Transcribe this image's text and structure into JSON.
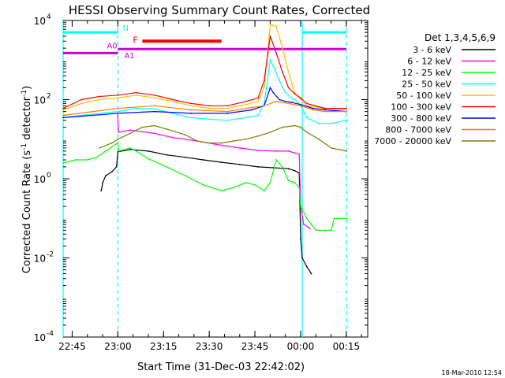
{
  "chart_data": {
    "type": "line",
    "title": "HESSI Observing Summary Count Rates, Corrected",
    "xlabel": "Start Time (31-Dec-03 22:42:02)",
    "ylabel_main": "Corrected Count Rate (s",
    "ylabel_sup1": "-1",
    "ylabel_mid": " detector",
    "ylabel_sup2": "-1",
    "ylabel_end": ")",
    "y_scale": "log",
    "ylim": [
      0.0001,
      10000
    ],
    "xlim_minutes": [
      0,
      100
    ],
    "x_ticks": [
      {
        "label": "22:45",
        "t": 2.97
      },
      {
        "label": "23:00",
        "t": 17.97
      },
      {
        "label": "23:15",
        "t": 32.97
      },
      {
        "label": "23:30",
        "t": 47.97
      },
      {
        "label": "23:45",
        "t": 62.97
      },
      {
        "label": "00:00",
        "t": 77.97
      },
      {
        "label": "00:15",
        "t": 92.97
      }
    ],
    "y_ticks": [
      {
        "base": "10",
        "exp": "-4",
        "value": 0.0001
      },
      {
        "base": "10",
        "exp": "-2",
        "value": 0.01
      },
      {
        "base": "10",
        "exp": "0",
        "value": 1
      },
      {
        "base": "10",
        "exp": "2",
        "value": 100
      },
      {
        "base": "10",
        "exp": "4",
        "value": 10000
      }
    ],
    "legend_title": "Det 1,3,4,5,6,9",
    "legend_placement": "right",
    "series": [
      {
        "name": "3 - 6 keV",
        "color": "#000000",
        "points": [
          [
            12.5,
            0.5
          ],
          [
            13,
            0.8
          ],
          [
            14,
            1.2
          ],
          [
            16,
            1.5
          ],
          [
            17.5,
            2
          ],
          [
            18,
            4.8
          ],
          [
            22,
            5.5
          ],
          [
            28,
            5.0
          ],
          [
            34,
            4.0
          ],
          [
            40,
            3.5
          ],
          [
            46,
            3.0
          ],
          [
            52,
            2.6
          ],
          [
            58,
            2.3
          ],
          [
            64,
            2.0
          ],
          [
            69,
            1.9
          ],
          [
            74,
            1.8
          ],
          [
            76,
            1.6
          ],
          [
            77.5,
            1.4
          ],
          [
            78,
            0.03
          ],
          [
            78.5,
            0.01
          ],
          [
            80,
            0.006
          ],
          [
            81.5,
            0.004
          ]
        ]
      },
      {
        "name": "6 - 12 keV",
        "color": "#ff00ff",
        "points": [
          [
            17.9,
            40
          ],
          [
            18.2,
            15
          ],
          [
            22,
            17
          ],
          [
            30,
            14
          ],
          [
            36,
            11
          ],
          [
            44,
            9
          ],
          [
            52,
            7
          ],
          [
            58,
            6
          ],
          [
            64,
            5.2
          ],
          [
            70,
            5
          ],
          [
            74,
            5
          ],
          [
            76,
            4.5
          ],
          [
            77.5,
            4.2
          ],
          [
            78,
            0.2
          ],
          [
            79,
            0.07
          ],
          [
            80.5,
            0.06
          ],
          [
            81,
            0.055
          ]
        ]
      },
      {
        "name": "12 - 25 keV",
        "color": "#00ff00",
        "points": [
          [
            0,
            2.5
          ],
          [
            4,
            3
          ],
          [
            8,
            3
          ],
          [
            11,
            3.5
          ],
          [
            14,
            5
          ],
          [
            17.9,
            8
          ],
          [
            18.3,
            5
          ],
          [
            22,
            6
          ],
          [
            24,
            5
          ],
          [
            28,
            3.2
          ],
          [
            34,
            2
          ],
          [
            40,
            1.2
          ],
          [
            46,
            0.7
          ],
          [
            52,
            0.5
          ],
          [
            56,
            0.6
          ],
          [
            60,
            0.8
          ],
          [
            63,
            0.7
          ],
          [
            66,
            0.5
          ],
          [
            68,
            0.8
          ],
          [
            70,
            3
          ],
          [
            72,
            2
          ],
          [
            74,
            0.9
          ],
          [
            76,
            0.8
          ],
          [
            77.5,
            0.6
          ],
          [
            78,
            0.2
          ],
          [
            80,
            0.1
          ],
          [
            81.5,
            0.07
          ],
          [
            83,
            0.05
          ],
          [
            88,
            0.05
          ],
          [
            89,
            0.1
          ],
          [
            93,
            0.1
          ]
        ]
      },
      {
        "name": "25 - 50 keV",
        "color": "#00ffff",
        "points": [
          [
            0,
            35
          ],
          [
            6,
            40
          ],
          [
            12,
            45
          ],
          [
            18,
            50
          ],
          [
            24,
            60
          ],
          [
            30,
            58
          ],
          [
            36,
            45
          ],
          [
            42,
            35
          ],
          [
            48,
            32
          ],
          [
            54,
            30
          ],
          [
            60,
            35
          ],
          [
            64,
            40
          ],
          [
            66,
            80
          ],
          [
            68,
            1000
          ],
          [
            69,
            700
          ],
          [
            71,
            300
          ],
          [
            73,
            150
          ],
          [
            75,
            110
          ],
          [
            77,
            90
          ],
          [
            78,
            70
          ],
          [
            80,
            35
          ],
          [
            84,
            25
          ],
          [
            88,
            25
          ],
          [
            93,
            30
          ]
        ]
      },
      {
        "name": "50 - 100 keV",
        "color": "#ffbf00",
        "points": [
          [
            0,
            55
          ],
          [
            6,
            80
          ],
          [
            12,
            100
          ],
          [
            18,
            110
          ],
          [
            24,
            130
          ],
          [
            30,
            110
          ],
          [
            36,
            90
          ],
          [
            42,
            70
          ],
          [
            48,
            60
          ],
          [
            54,
            60
          ],
          [
            60,
            75
          ],
          [
            64,
            90
          ],
          [
            66,
            200
          ],
          [
            68,
            8000
          ],
          [
            70,
            7000
          ],
          [
            72,
            2000
          ],
          [
            74,
            500
          ],
          [
            76,
            150
          ],
          [
            78,
            100
          ],
          [
            80,
            70
          ],
          [
            86,
            60
          ],
          [
            93,
            55
          ]
        ]
      },
      {
        "name": "100 - 300 keV",
        "color": "#ff0000",
        "points": [
          [
            0,
            60
          ],
          [
            6,
            100
          ],
          [
            12,
            120
          ],
          [
            18,
            130
          ],
          [
            24,
            150
          ],
          [
            30,
            130
          ],
          [
            36,
            100
          ],
          [
            42,
            80
          ],
          [
            48,
            70
          ],
          [
            54,
            70
          ],
          [
            60,
            90
          ],
          [
            64,
            110
          ],
          [
            66,
            300
          ],
          [
            68,
            4000
          ],
          [
            70,
            1500
          ],
          [
            72,
            500
          ],
          [
            74,
            200
          ],
          [
            76,
            140
          ],
          [
            78,
            110
          ],
          [
            80,
            80
          ],
          [
            86,
            60
          ],
          [
            93,
            60
          ]
        ]
      },
      {
        "name": "300 - 800 keV",
        "color": "#0000ff",
        "points": [
          [
            0,
            35
          ],
          [
            18,
            45
          ],
          [
            30,
            50
          ],
          [
            42,
            45
          ],
          [
            54,
            45
          ],
          [
            62,
            55
          ],
          [
            66,
            70
          ],
          [
            68,
            200
          ],
          [
            69,
            150
          ],
          [
            71,
            100
          ],
          [
            73,
            90
          ],
          [
            75,
            85
          ],
          [
            78,
            75
          ],
          [
            82,
            60
          ],
          [
            86,
            55
          ],
          [
            93,
            50
          ]
        ]
      },
      {
        "name": "800 - 7000 keV",
        "color": "#ff7f00",
        "points": [
          [
            0,
            40
          ],
          [
            18,
            60
          ],
          [
            30,
            70
          ],
          [
            42,
            55
          ],
          [
            54,
            50
          ],
          [
            60,
            60
          ],
          [
            66,
            70
          ],
          [
            70,
            90
          ],
          [
            74,
            80
          ],
          [
            78,
            70
          ],
          [
            82,
            55
          ],
          [
            86,
            50
          ],
          [
            93,
            50
          ]
        ]
      },
      {
        "name": "7000 - 20000 keV",
        "color": "#7f7f00",
        "points": [
          [
            12,
            6
          ],
          [
            16,
            8
          ],
          [
            18,
            10
          ],
          [
            22,
            14
          ],
          [
            26,
            20
          ],
          [
            30,
            22
          ],
          [
            34,
            18
          ],
          [
            40,
            13
          ],
          [
            44,
            9
          ],
          [
            48,
            8
          ],
          [
            52,
            8
          ],
          [
            56,
            9
          ],
          [
            60,
            10
          ],
          [
            64,
            12
          ],
          [
            68,
            15
          ],
          [
            72,
            20
          ],
          [
            76,
            22
          ],
          [
            78,
            20
          ],
          [
            80,
            15
          ],
          [
            84,
            10
          ],
          [
            88,
            6
          ],
          [
            93,
            5
          ]
        ]
      }
    ],
    "attenuator_segments": [
      {
        "label": "A0",
        "t0": 0,
        "t1": 18,
        "value": 1500,
        "color": "#cc00cc"
      },
      {
        "label": "A1",
        "t0": 18,
        "t1": 93,
        "value": 1900,
        "color": "#cc00cc"
      }
    ],
    "night_segments": [
      {
        "label": "N",
        "t0": 0,
        "t1": 18,
        "value": 5000,
        "color": "#00ffff"
      },
      {
        "label": "",
        "t0": 78.5,
        "t1": 93,
        "value": 5000,
        "color": "#00ffff"
      }
    ],
    "flare_segment": {
      "label": "F",
      "t0": 26,
      "t1": 52,
      "value": 3000,
      "color": "#ff0000"
    },
    "vlines": [
      {
        "t": 0,
        "style": "solid",
        "color": "#00ffff"
      },
      {
        "t": 18,
        "style": "dashed",
        "color": "#00ffff"
      },
      {
        "t": 78.5,
        "style": "solid",
        "color": "#00ffff"
      },
      {
        "t": 93,
        "style": "dashed",
        "color": "#00ffff"
      }
    ],
    "timestamp": "18-Mar-2010 12:54"
  }
}
